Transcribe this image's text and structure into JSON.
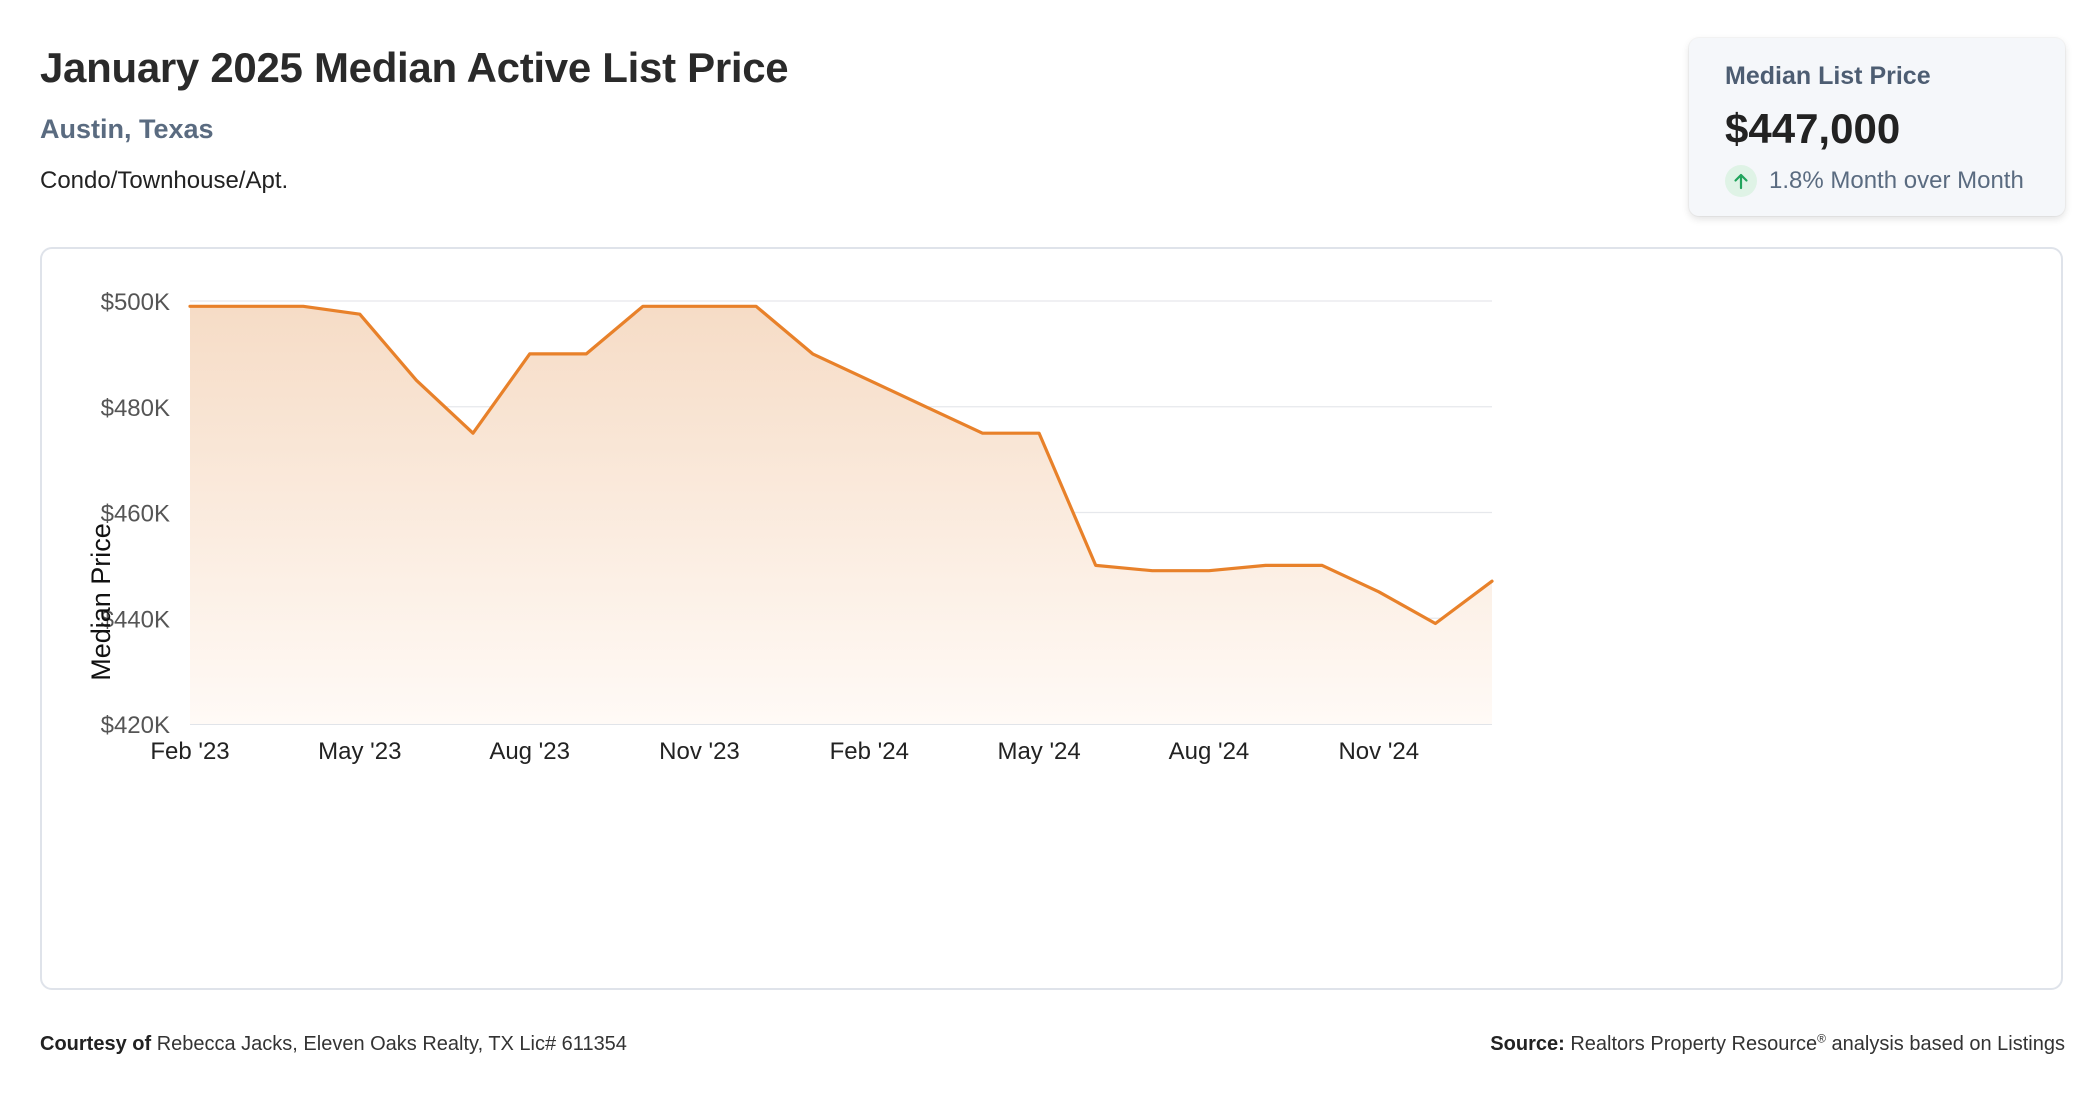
{
  "header": {
    "title": "January 2025 Median Active List Price",
    "location": "Austin, Texas",
    "category": "Condo/Townhouse/Apt."
  },
  "stat": {
    "label": "Median List Price",
    "value": "$447,000",
    "change": "1.8% Month over Month",
    "direction_icon": "arrow-up-icon",
    "positive_color": "#22a45d"
  },
  "footer": {
    "courtesy_label": "Courtesy of",
    "courtesy_text": "Rebecca Jacks, Eleven Oaks Realty, TX Lic# 611354",
    "source_label": "Source:",
    "source_text": "Realtors Property Resource",
    "source_mark": "®",
    "source_suffix": "analysis based on Listings"
  },
  "chart_data": {
    "type": "area",
    "ylabel": "Median Price",
    "ylim": [
      420000,
      500000
    ],
    "yticks": [
      500000,
      480000,
      460000,
      440000,
      420000
    ],
    "ytick_labels": [
      "$500K",
      "$480K",
      "$460K",
      "$440K",
      "$420K"
    ],
    "x": [
      "2023-02",
      "2023-03",
      "2023-04",
      "2023-05",
      "2023-06",
      "2023-07",
      "2023-08",
      "2023-09",
      "2023-10",
      "2023-11",
      "2023-12",
      "2024-01",
      "2024-02",
      "2024-03",
      "2024-04",
      "2024-05",
      "2024-06",
      "2024-07",
      "2024-08",
      "2024-09",
      "2024-10",
      "2024-11",
      "2024-12",
      "2025-01"
    ],
    "xticks": [
      "Feb '23",
      "May '23",
      "Aug '23",
      "Nov '23",
      "Feb '24",
      "May '24",
      "Aug '24",
      "Nov '24"
    ],
    "xtick_index": [
      0,
      3,
      6,
      9,
      12,
      15,
      18,
      21
    ],
    "values": [
      499000,
      499000,
      499000,
      497500,
      485000,
      475000,
      490000,
      490000,
      499000,
      499000,
      499000,
      490000,
      485000,
      480000,
      475000,
      475000,
      450000,
      449000,
      449000,
      450000,
      450000,
      445000,
      439000,
      447000
    ],
    "line_color": "#e8812a",
    "fill_top_color": "#f6dcc6",
    "fill_bottom_color": "#fffaf6",
    "grid": true
  }
}
